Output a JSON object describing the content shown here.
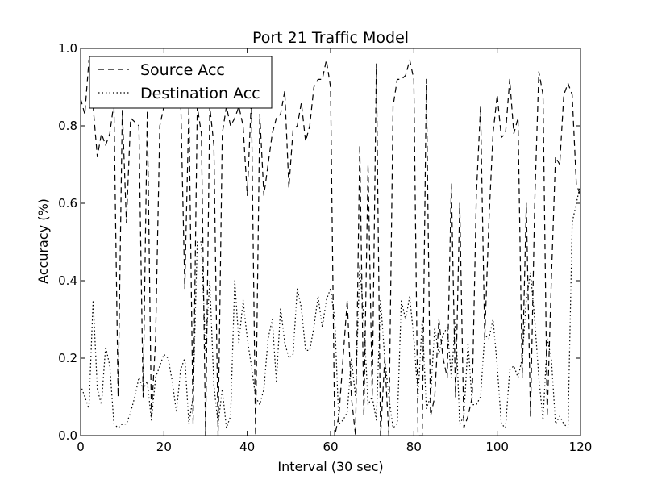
{
  "chart_data": {
    "type": "line",
    "title": "Port 21 Traffic Model",
    "xlabel": "Interval (30 sec)",
    "ylabel": "Accuracy (%)",
    "xlim": [
      0,
      120
    ],
    "ylim": [
      0.0,
      1.0
    ],
    "xticks": [
      0,
      20,
      40,
      60,
      80,
      100,
      120
    ],
    "yticks": [
      0.0,
      0.2,
      0.4,
      0.6,
      0.8,
      1.0
    ],
    "xtick_labels": [
      "0",
      "20",
      "40",
      "60",
      "80",
      "100",
      "120"
    ],
    "ytick_labels": [
      "0.0",
      "0.2",
      "0.4",
      "0.6",
      "0.8",
      "1.0"
    ],
    "grid": false,
    "legend_position": "top-left",
    "series": [
      {
        "name": "Source Acc",
        "style": "dashed",
        "color": "#000000",
        "x": [
          0,
          1,
          2,
          3,
          4,
          5,
          6,
          7,
          8,
          9,
          10,
          11,
          12,
          13,
          14,
          15,
          16,
          17,
          18,
          19,
          20,
          21,
          22,
          23,
          24,
          25,
          26,
          27,
          28,
          29,
          30,
          31,
          32,
          33,
          34,
          35,
          36,
          37,
          38,
          39,
          40,
          41,
          42,
          43,
          44,
          45,
          46,
          47,
          48,
          49,
          50,
          51,
          52,
          53,
          54,
          55,
          56,
          57,
          58,
          59,
          60,
          61,
          62,
          63,
          64,
          65,
          66,
          67,
          68,
          69,
          70,
          71,
          72,
          73,
          74,
          75,
          76,
          77,
          78,
          79,
          80,
          81,
          82,
          83,
          84,
          85,
          86,
          87,
          88,
          89,
          90,
          91,
          92,
          93,
          94,
          95,
          96,
          97,
          98,
          99,
          100,
          101,
          102,
          103,
          104,
          105,
          106,
          107,
          108,
          109,
          110,
          111,
          112,
          113,
          114,
          115,
          116,
          117,
          118,
          119,
          120
        ],
        "y": [
          0.87,
          0.83,
          0.97,
          0.85,
          0.72,
          0.78,
          0.75,
          0.78,
          0.86,
          0.1,
          0.84,
          0.55,
          0.82,
          0.81,
          0.8,
          0.1,
          0.84,
          0.05,
          0.25,
          0.8,
          0.85,
          0.87,
          0.94,
          0.97,
          0.88,
          0.38,
          0.85,
          0.03,
          0.85,
          0.78,
          0.0,
          0.85,
          0.75,
          0.0,
          0.78,
          0.85,
          0.8,
          0.82,
          0.85,
          0.8,
          0.62,
          0.87,
          0.0,
          0.83,
          0.62,
          0.7,
          0.78,
          0.82,
          0.83,
          0.89,
          0.64,
          0.79,
          0.8,
          0.86,
          0.76,
          0.8,
          0.9,
          0.92,
          0.92,
          0.97,
          0.9,
          0.0,
          0.05,
          0.2,
          0.35,
          0.1,
          0.0,
          0.75,
          0.05,
          0.7,
          0.1,
          0.96,
          0.0,
          0.2,
          0.0,
          0.85,
          0.92,
          0.92,
          0.93,
          0.97,
          0.92,
          0.0,
          0.0,
          0.92,
          0.05,
          0.1,
          0.3,
          0.2,
          0.15,
          0.65,
          0.1,
          0.6,
          0.02,
          0.05,
          0.1,
          0.62,
          0.85,
          0.25,
          0.55,
          0.78,
          0.88,
          0.77,
          0.78,
          0.92,
          0.78,
          0.82,
          0.15,
          0.6,
          0.05,
          0.6,
          0.94,
          0.88,
          0.05,
          0.4,
          0.72,
          0.7,
          0.88,
          0.91,
          0.88,
          0.65,
          0.62
        ]
      },
      {
        "name": "Destination Acc",
        "style": "dotted",
        "color": "#000000",
        "x": [
          0,
          1,
          2,
          3,
          4,
          5,
          6,
          7,
          8,
          9,
          10,
          11,
          12,
          13,
          14,
          15,
          16,
          17,
          18,
          19,
          20,
          21,
          22,
          23,
          24,
          25,
          26,
          27,
          28,
          29,
          30,
          31,
          32,
          33,
          34,
          35,
          36,
          37,
          38,
          39,
          40,
          41,
          42,
          43,
          44,
          45,
          46,
          47,
          48,
          49,
          50,
          51,
          52,
          53,
          54,
          55,
          56,
          57,
          58,
          59,
          60,
          61,
          62,
          63,
          64,
          65,
          66,
          67,
          68,
          69,
          70,
          71,
          72,
          73,
          74,
          75,
          76,
          77,
          78,
          79,
          80,
          81,
          82,
          83,
          84,
          85,
          86,
          87,
          88,
          89,
          90,
          91,
          92,
          93,
          94,
          95,
          96,
          97,
          98,
          99,
          100,
          101,
          102,
          103,
          104,
          105,
          106,
          107,
          108,
          109,
          110,
          111,
          112,
          113,
          114,
          115,
          116,
          117,
          118,
          119,
          120
        ],
        "y": [
          0.13,
          0.1,
          0.07,
          0.35,
          0.12,
          0.08,
          0.23,
          0.18,
          0.03,
          0.02,
          0.03,
          0.03,
          0.06,
          0.1,
          0.15,
          0.12,
          0.14,
          0.04,
          0.15,
          0.18,
          0.21,
          0.2,
          0.14,
          0.06,
          0.17,
          0.2,
          0.03,
          0.1,
          0.5,
          0.5,
          0.22,
          0.4,
          0.13,
          0.03,
          0.12,
          0.02,
          0.05,
          0.4,
          0.24,
          0.35,
          0.25,
          0.18,
          0.1,
          0.08,
          0.12,
          0.25,
          0.3,
          0.14,
          0.33,
          0.24,
          0.2,
          0.21,
          0.38,
          0.33,
          0.22,
          0.22,
          0.28,
          0.36,
          0.28,
          0.35,
          0.38,
          0.3,
          0.03,
          0.04,
          0.06,
          0.2,
          0.1,
          0.44,
          0.3,
          0.08,
          0.1,
          0.04,
          0.35,
          0.2,
          0.1,
          0.02,
          0.03,
          0.35,
          0.3,
          0.36,
          0.25,
          0.1,
          0.3,
          0.07,
          0.1,
          0.28,
          0.21,
          0.26,
          0.28,
          0.15,
          0.3,
          0.03,
          0.05,
          0.24,
          0.08,
          0.08,
          0.1,
          0.26,
          0.25,
          0.3,
          0.18,
          0.03,
          0.02,
          0.17,
          0.18,
          0.15,
          0.2,
          0.35,
          0.42,
          0.3,
          0.15,
          0.04,
          0.25,
          0.2,
          0.03,
          0.05,
          0.03,
          0.02,
          0.55,
          0.6,
          0.65
        ]
      }
    ]
  }
}
